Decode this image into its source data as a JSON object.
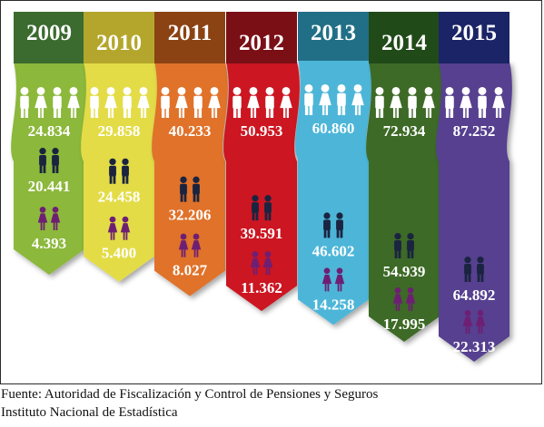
{
  "chart_data": {
    "type": "bar",
    "categories": [
      "2009",
      "2010",
      "2011",
      "2012",
      "2013",
      "2014",
      "2015"
    ],
    "series": [
      {
        "icon": "family-group-icon",
        "values": [
          24834,
          29858,
          40233,
          50953,
          60860,
          72934,
          87252
        ],
        "labels": [
          "24.834",
          "29.858",
          "40.233",
          "50.953",
          "60.860",
          "72.934",
          "87.252"
        ]
      },
      {
        "icon": "men-pair-icon",
        "values": [
          20441,
          24458,
          32206,
          39591,
          46602,
          54939,
          64892
        ],
        "labels": [
          "20.441",
          "24.458",
          "32.206",
          "39.591",
          "46.602",
          "54.939",
          "64.892"
        ]
      },
      {
        "icon": "women-pair-icon",
        "values": [
          4393,
          5400,
          8027,
          11362,
          14258,
          17995,
          22313
        ],
        "labels": [
          "4.393",
          "5.400",
          "8.027",
          "11.362",
          "14.258",
          "17.995",
          "22.313"
        ]
      }
    ],
    "colors": {
      "ribbons": [
        "#8cb83a",
        "#e3dc47",
        "#e0722c",
        "#cc1420",
        "#4eb6d8",
        "#3e6b25",
        "#56418f"
      ],
      "year_boxes": [
        "#3b6b2f",
        "#b4a62c",
        "#8b4313",
        "#7a0f16",
        "#216f86",
        "#214a19",
        "#1b2466"
      ],
      "men_icon": "#1a2440",
      "women_icon": "#6e1f73",
      "family_icon": "#ffffff"
    }
  },
  "source": {
    "line1": "Fuente: Autoridad de Fiscalización y Control de Pensiones y Seguros",
    "line2": "Instituto Nacional de Estadística"
  }
}
